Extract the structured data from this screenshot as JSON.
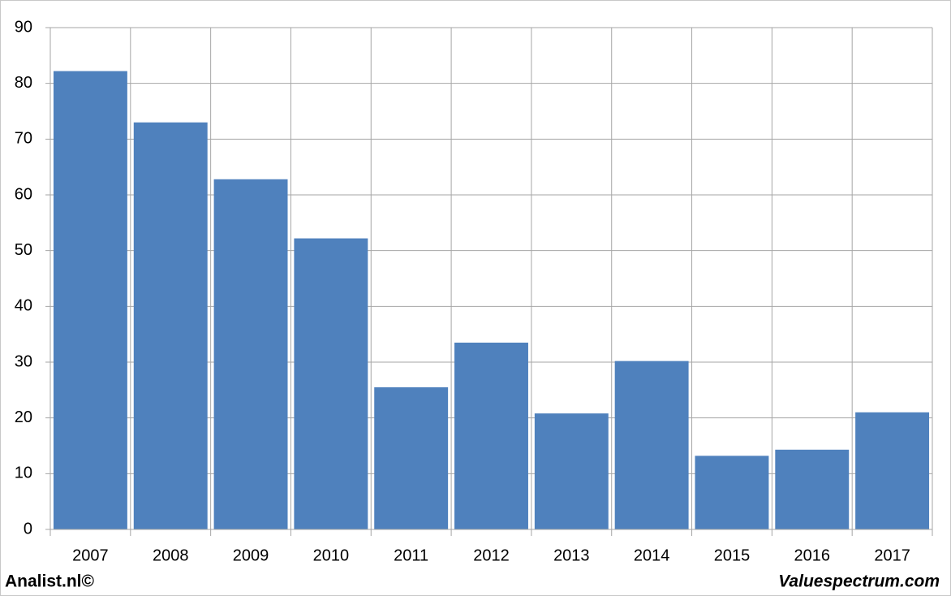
{
  "chart_data": {
    "type": "bar",
    "categories": [
      "2007",
      "2008",
      "2009",
      "2010",
      "2011",
      "2012",
      "2013",
      "2014",
      "2015",
      "2016",
      "2017"
    ],
    "values": [
      82.2,
      73,
      62.8,
      52.2,
      25.5,
      33.5,
      20.8,
      30.2,
      13.2,
      14.3,
      21.0
    ],
    "color": "#4f81bd",
    "ylim": [
      0,
      90
    ],
    "yticks": [
      0,
      10,
      20,
      30,
      40,
      50,
      60,
      70,
      80,
      90
    ],
    "grid": true,
    "footer_left": "Analist.nl©",
    "footer_right": "Valuespectrum.com"
  }
}
